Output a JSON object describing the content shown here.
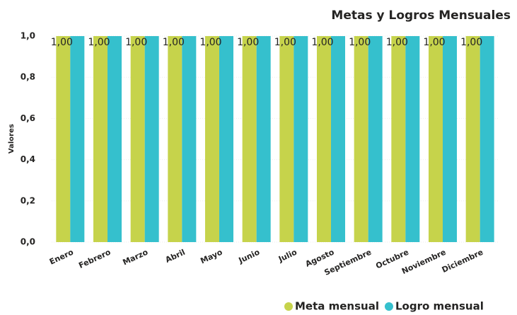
{
  "chart_data": {
    "type": "bar",
    "title": "Metas y Logros Mensuales",
    "y_label": "Valores",
    "categories": [
      "Enero",
      "Febrero",
      "Marzo",
      "Abril",
      "Mayo",
      "Junio",
      "Julio",
      "Agosto",
      "Septiembre",
      "Octubre",
      "Noviembre",
      "Diciembre"
    ],
    "series": [
      {
        "name": "Meta mensual",
        "color": "#c6d34b",
        "values": [
          1,
          1,
          1,
          1,
          1,
          1,
          1,
          1,
          1,
          1,
          1,
          1
        ],
        "value_labels": [
          "1,00",
          "1,00",
          "1,00",
          "1,00",
          "1,00",
          "1,00",
          "1,00",
          "1,00",
          "1,00",
          "1,00",
          "1,00",
          "1,00"
        ]
      },
      {
        "name": "Logro mensual",
        "color": "#35c0cd",
        "values": [
          1,
          1,
          1,
          1,
          1,
          1,
          1,
          1,
          1,
          1,
          1,
          1
        ]
      }
    ],
    "ylim": [
      0,
      1
    ],
    "yticks": [
      {
        "value": 0,
        "label": "0,0"
      },
      {
        "value": 0.2,
        "label": "0,2"
      },
      {
        "value": 0.4,
        "label": "0,4"
      },
      {
        "value": 0.6,
        "label": "0,6"
      },
      {
        "value": 0.8,
        "label": "0,8"
      },
      {
        "value": 1,
        "label": "1,0"
      }
    ],
    "grid": true,
    "legend": "bottom-right"
  }
}
